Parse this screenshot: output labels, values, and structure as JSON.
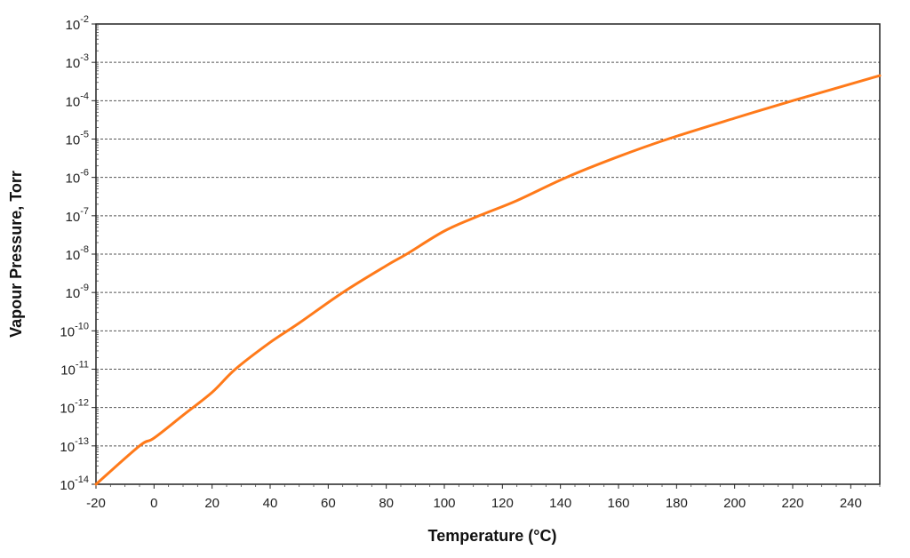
{
  "chart_data": {
    "type": "line",
    "title": "",
    "xlabel": "Temperature (°C)",
    "ylabel": "Vapour Pressure, Torr",
    "xlim": [
      -20,
      250
    ],
    "ylim": [
      1e-14,
      0.01
    ],
    "yscale": "log",
    "grid": "horizontal dashed",
    "x_ticks": [
      "-20",
      "0",
      "20",
      "40",
      "60",
      "80",
      "100",
      "120",
      "140",
      "160",
      "180",
      "200",
      "220",
      "240"
    ],
    "y_ticks": [
      {
        "base": "10",
        "exp": "-2"
      },
      {
        "base": "10",
        "exp": "-3"
      },
      {
        "base": "10",
        "exp": "-4"
      },
      {
        "base": "10",
        "exp": "-5"
      },
      {
        "base": "10",
        "exp": "-6"
      },
      {
        "base": "10",
        "exp": "-7"
      },
      {
        "base": "10",
        "exp": "-8"
      },
      {
        "base": "10",
        "exp": "-9"
      },
      {
        "base": "10",
        "exp": "-10"
      },
      {
        "base": "10",
        "exp": "-11"
      },
      {
        "base": "10",
        "exp": "-12"
      },
      {
        "base": "10",
        "exp": "-13"
      },
      {
        "base": "10",
        "exp": "-14"
      }
    ],
    "series": [
      {
        "color": "#ff7a1a",
        "x": [
          -20,
          -5,
          0,
          10,
          20,
          28,
          40,
          50,
          65,
          80,
          87,
          100,
          112,
          125,
          142,
          160,
          177,
          200,
          220,
          250
        ],
        "y": [
          1e-14,
          1e-13,
          1.6e-13,
          6.3e-13,
          2.5e-12,
          1e-11,
          5e-11,
          1.6e-10,
          1e-09,
          5e-09,
          1e-08,
          4e-08,
          1e-07,
          2.5e-07,
          1e-06,
          3.5e-06,
          1e-05,
          3.5e-05,
          0.0001,
          0.00045
        ]
      }
    ]
  }
}
